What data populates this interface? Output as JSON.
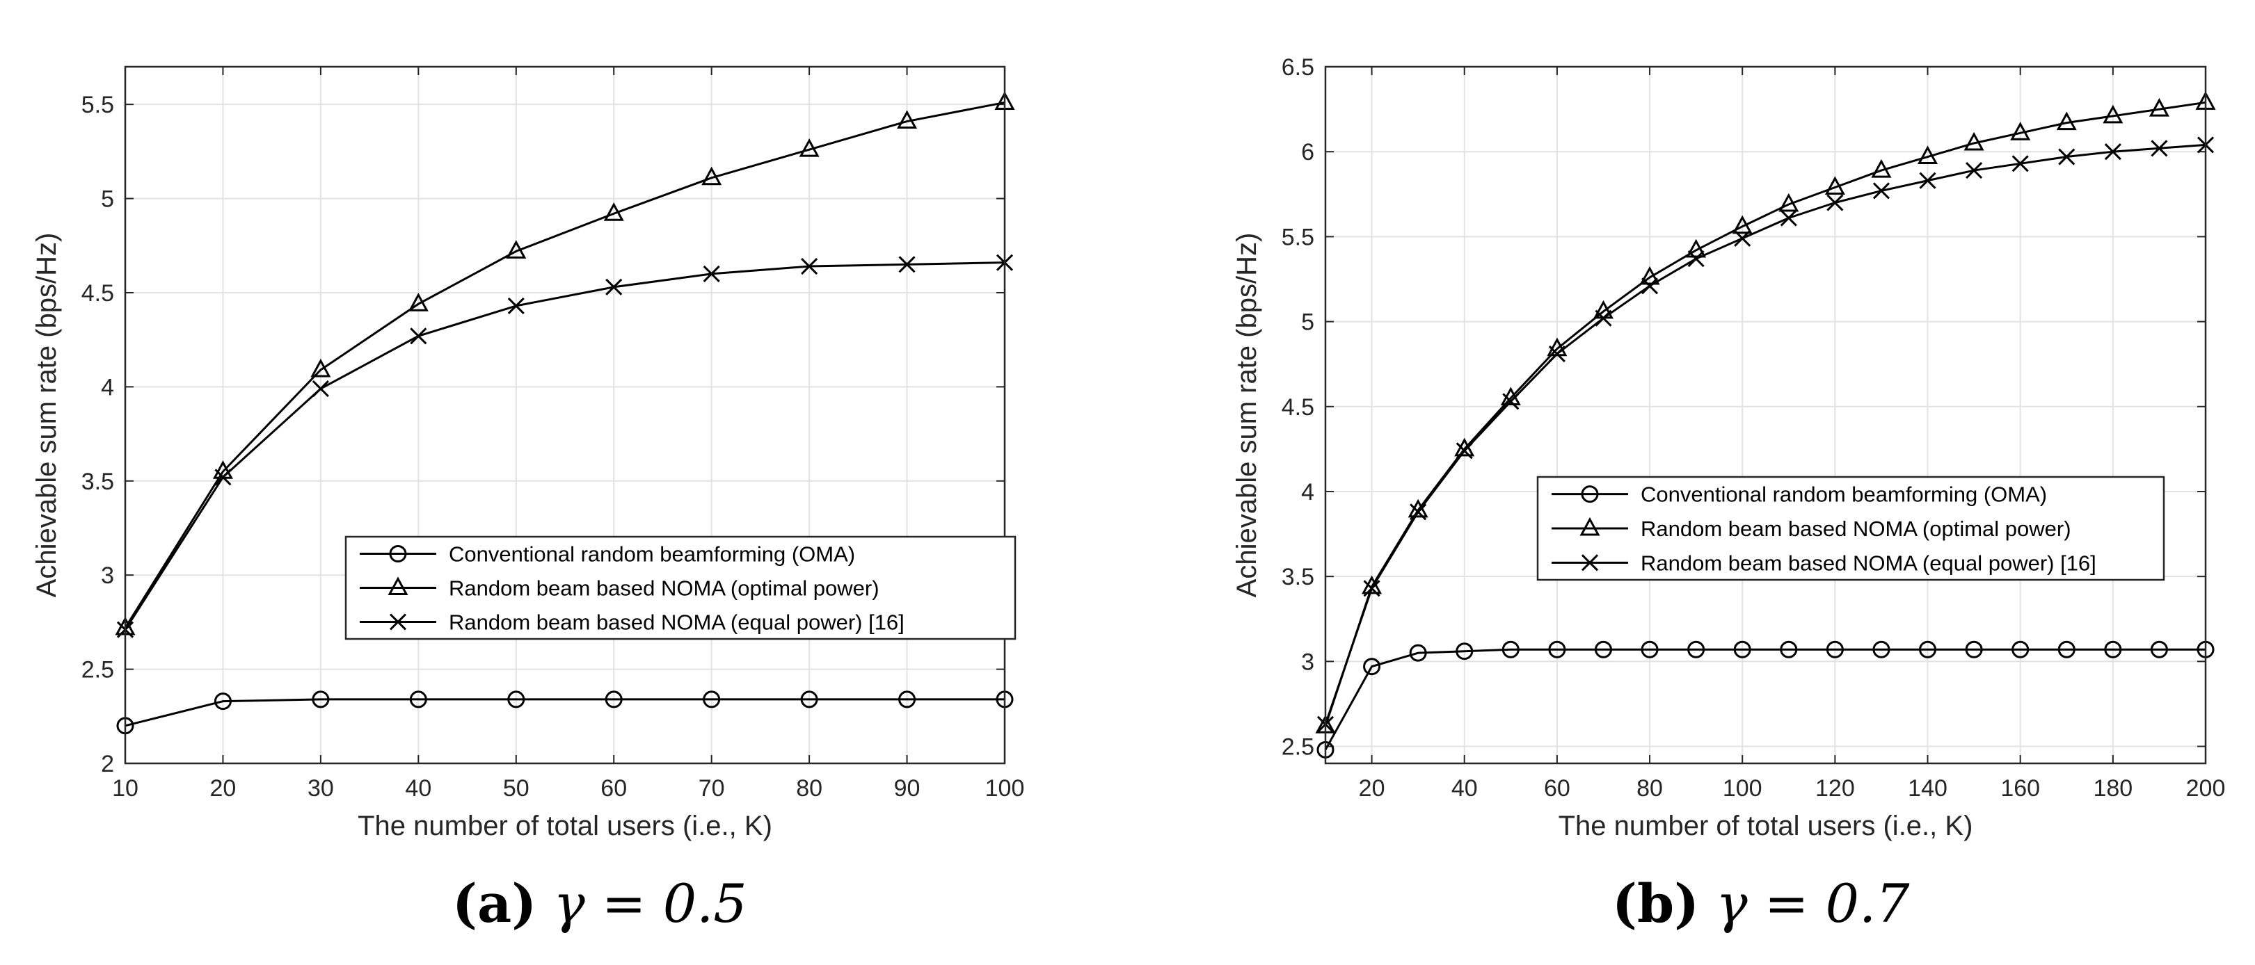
{
  "chart_data": [
    {
      "type": "line",
      "caption": {
        "label": "(a)",
        "text": "γ = 0.5"
      },
      "xlabel": "The number of total users (i.e., K)",
      "ylabel": "Achievable sum rate (bps/Hz)",
      "xlim": [
        10,
        100
      ],
      "ylim": [
        2,
        5.7
      ],
      "xticks": [
        "10",
        "20",
        "30",
        "40",
        "50",
        "60",
        "70",
        "80",
        "90",
        "100"
      ],
      "xtick_values": [
        10,
        20,
        30,
        40,
        50,
        60,
        70,
        80,
        90,
        100
      ],
      "yticks": [
        "2",
        "2.5",
        "3",
        "3.5",
        "4",
        "4.5",
        "5",
        "5.5"
      ],
      "ytick_values": [
        2,
        2.5,
        3,
        3.5,
        4,
        4.5,
        5,
        5.5
      ],
      "grid": true,
      "legend_position": "center-right",
      "x": [
        10,
        20,
        30,
        40,
        50,
        60,
        70,
        80,
        90,
        100
      ],
      "series": [
        {
          "name": "Conventional random beamforming (OMA)",
          "marker": "circle",
          "values": [
            2.2,
            2.33,
            2.34,
            2.34,
            2.34,
            2.34,
            2.34,
            2.34,
            2.34,
            2.34
          ]
        },
        {
          "name": "Random beam based NOMA (optimal power)",
          "marker": "triangle",
          "values": [
            2.72,
            3.55,
            4.09,
            4.44,
            4.72,
            4.92,
            5.11,
            5.26,
            5.41,
            5.51
          ]
        },
        {
          "name": "Random beam based NOMA (equal power) [16]",
          "marker": "x",
          "values": [
            2.71,
            3.52,
            3.99,
            4.27,
            4.43,
            4.53,
            4.6,
            4.64,
            4.65,
            4.66
          ]
        }
      ]
    },
    {
      "type": "line",
      "caption": {
        "label": "(b)",
        "text": "γ = 0.7"
      },
      "xlabel": "The number of total users (i.e., K)",
      "ylabel": "Achievable sum rate (bps/Hz)",
      "xlim": [
        10,
        200
      ],
      "ylim": [
        2.4,
        6.5
      ],
      "xticks": [
        "20",
        "40",
        "60",
        "80",
        "100",
        "120",
        "140",
        "160",
        "180",
        "200"
      ],
      "xtick_values": [
        20,
        40,
        60,
        80,
        100,
        120,
        140,
        160,
        180,
        200
      ],
      "yticks": [
        "2.5",
        "3",
        "3.5",
        "4",
        "4.5",
        "5",
        "5.5",
        "6",
        "6.5"
      ],
      "ytick_values": [
        2.5,
        3,
        3.5,
        4,
        4.5,
        5,
        5.5,
        6,
        6.5
      ],
      "grid": true,
      "legend_position": "center",
      "x": [
        10,
        20,
        30,
        40,
        50,
        60,
        70,
        80,
        90,
        100,
        110,
        120,
        130,
        140,
        150,
        160,
        170,
        180,
        190,
        200
      ],
      "series": [
        {
          "name": "Conventional random beamforming (OMA)",
          "marker": "circle",
          "values": [
            2.48,
            2.97,
            3.05,
            3.06,
            3.07,
            3.07,
            3.07,
            3.07,
            3.07,
            3.07,
            3.07,
            3.07,
            3.07,
            3.07,
            3.07,
            3.07,
            3.07,
            3.07,
            3.07,
            3.07
          ]
        },
        {
          "name": "Random beam based NOMA (optimal power)",
          "marker": "triangle",
          "values": [
            2.62,
            3.44,
            3.89,
            4.25,
            4.55,
            4.84,
            5.06,
            5.26,
            5.42,
            5.56,
            5.69,
            5.79,
            5.89,
            5.97,
            6.05,
            6.11,
            6.17,
            6.21,
            6.25,
            6.29
          ]
        },
        {
          "name": "Random beam based NOMA (equal power) [16]",
          "marker": "x",
          "values": [
            2.63,
            3.43,
            3.88,
            4.24,
            4.53,
            4.81,
            5.02,
            5.21,
            5.37,
            5.49,
            5.61,
            5.7,
            5.77,
            5.83,
            5.89,
            5.93,
            5.97,
            6.0,
            6.02,
            6.04
          ]
        }
      ]
    }
  ]
}
